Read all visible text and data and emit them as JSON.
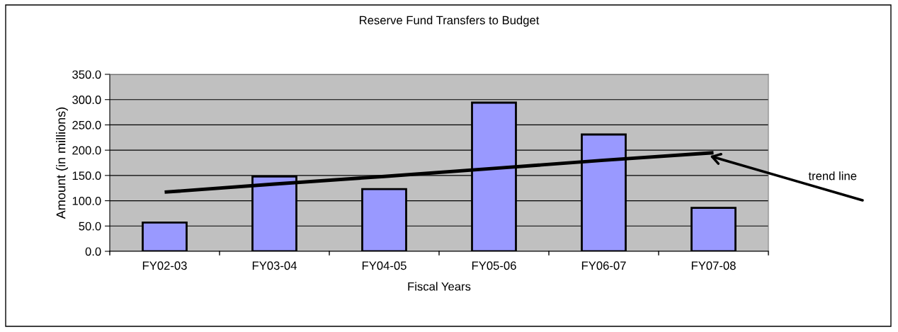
{
  "chart_data": {
    "type": "bar",
    "title": "Reserve Fund Transfers to Budget",
    "xlabel": "Fiscal Years",
    "ylabel": "Amount (in millions)",
    "categories": [
      "FY02-03",
      "FY03-04",
      "FY04-05",
      "FY05-06",
      "FY06-07",
      "FY07-08"
    ],
    "series": [
      {
        "color": "#9999ff",
        "values": [
          57,
          148,
          123,
          294,
          231,
          86
        ]
      },
      {
        "type": "line",
        "color": "#000000",
        "values": [
          117,
          133,
          148,
          164,
          180,
          195
        ]
      }
    ],
    "annotations": [
      "trend line"
    ],
    "ylim": [
      0,
      350
    ],
    "yticks": [
      {
        "value": 0,
        "label": "0.0"
      },
      {
        "value": 50,
        "label": "50.0"
      },
      {
        "value": 100,
        "label": "100.0"
      },
      {
        "value": 150,
        "label": "150.0"
      },
      {
        "value": 200,
        "label": "200.0"
      },
      {
        "value": 250,
        "label": "250.0"
      },
      {
        "value": 300,
        "label": "300.0"
      },
      {
        "value": 350,
        "label": "350.0"
      }
    ],
    "grid": "y",
    "legend": false
  }
}
